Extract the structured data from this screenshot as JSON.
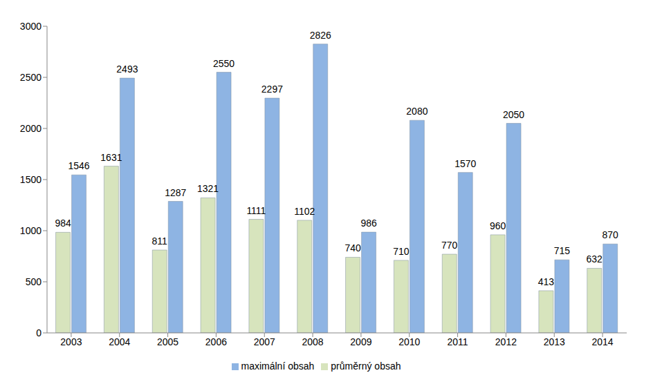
{
  "chart_data": {
    "type": "bar",
    "categories": [
      "2003",
      "2004",
      "2005",
      "2006",
      "2007",
      "2008",
      "2009",
      "2010",
      "2011",
      "2012",
      "2013",
      "2014"
    ],
    "series": [
      {
        "name": "průměrný obsah",
        "color": "#d7e4bd",
        "values": [
          984,
          1631,
          811,
          1321,
          1111,
          1102,
          740,
          710,
          770,
          960,
          413,
          632
        ]
      },
      {
        "name": "maximální obsah",
        "color": "#8eb4e3",
        "values": [
          1546,
          2493,
          1287,
          2550,
          2297,
          2826,
          986,
          2080,
          1570,
          2050,
          715,
          870
        ]
      }
    ],
    "ylim": [
      0,
      3000
    ],
    "yticks": [
      0,
      500,
      1000,
      1500,
      2000,
      2500,
      3000
    ],
    "grid": false,
    "legend": "bottom",
    "data_labels": true
  }
}
